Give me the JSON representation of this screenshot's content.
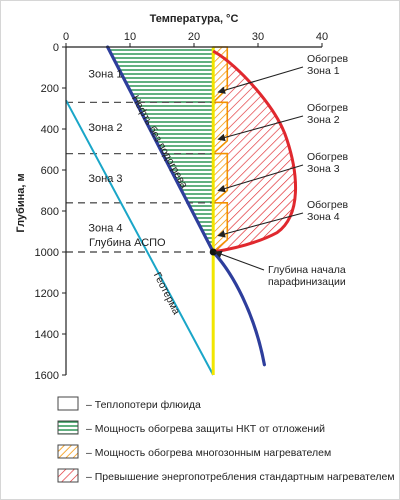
{
  "chart_data": {
    "type": "line",
    "title": "Температура, °C",
    "xlabel": "Температура, °C",
    "ylabel": "Глубина, м",
    "xlim": [
      0,
      40
    ],
    "ylim": [
      1600,
      0
    ],
    "x_ticks": [
      "0",
      "10",
      "20",
      "30",
      "40"
    ],
    "y_ticks": [
      "0",
      "200",
      "400",
      "600",
      "800",
      "1000",
      "1200",
      "1400",
      "1600"
    ],
    "series": [
      {
        "name": "Геотерма",
        "color": "#1aa6c8",
        "x": [
          0,
          23
        ],
        "y": [
          260,
          1600
        ]
      },
      {
        "name": "Нефть без подогрева",
        "color": "#2e3e9c",
        "x": [
          6.5,
          23,
          27,
          29.5,
          31
        ],
        "y": [
          0,
          1000,
          1200,
          1400,
          1550
        ]
      },
      {
        "name": "Температура парафинизации",
        "color": "#f2e600",
        "x": [
          23,
          23
        ],
        "y": [
          0,
          1600
        ]
      },
      {
        "name": "Стандартный нагреватель",
        "color": "#e0282e",
        "x": [
          23,
          30,
          34.5,
          36.5,
          34.5,
          29,
          23
        ],
        "y": [
          20,
          200,
          450,
          730,
          880,
          960,
          1000
        ]
      }
    ],
    "zone_boundaries": [
      270,
      520,
      760,
      1000
    ],
    "zones": [
      "Зона 1",
      "Зона 2",
      "Зона 3",
      "Зона 4"
    ],
    "aspo_depth": 1000,
    "aspo_label": "Глубина   АСПО",
    "annotations": [
      {
        "lines": [
          "Обогрев",
          "Зона 1"
        ],
        "target_x": 23.5,
        "target_y": 220
      },
      {
        "lines": [
          "Обогрев",
          "Зона 2"
        ],
        "target_x": 23.5,
        "target_y": 450
      },
      {
        "lines": [
          "Обогрев",
          "Зона 3"
        ],
        "target_x": 23.5,
        "target_y": 700
      },
      {
        "lines": [
          "Обогрев",
          "Зона 4"
        ],
        "target_x": 23.5,
        "target_y": 920
      },
      {
        "lines": [
          "Глубина начала",
          "парафинизации"
        ],
        "target_x": 23,
        "target_y": 1000
      }
    ],
    "curve_labels": [
      "Нефть без подогрева",
      "Геотерма"
    ],
    "legend": [
      {
        "label": "– Теплопотери флюида",
        "style": "empty"
      },
      {
        "label": "– Мощность обогрева защиты НКТ от отложений",
        "style": "green-lines"
      },
      {
        "label": "– Мощность обогрева многозонным нагревателем",
        "style": "orange-hatch"
      },
      {
        "label": "– Превышение энергопотребления стандартным нагревателем",
        "style": "red-hatch"
      }
    ],
    "colors": {
      "green": "#1f8f4a",
      "orange": "#f39200",
      "red": "#e0282e",
      "blue": "#2e3e9c",
      "cyan": "#1aa6c8",
      "yellow": "#f2e600"
    }
  }
}
